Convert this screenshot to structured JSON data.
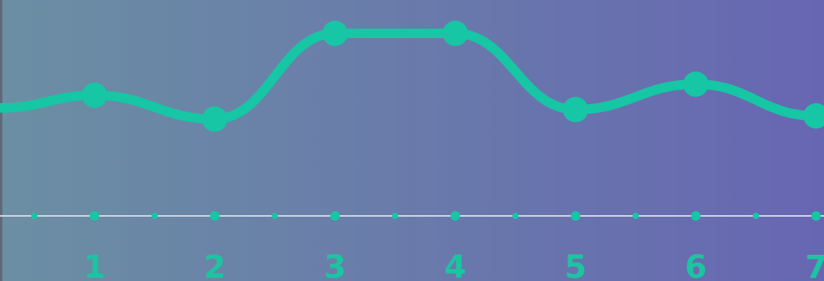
{
  "chart_data": {
    "type": "line",
    "x": [
      1,
      2,
      3,
      4,
      5,
      6,
      7
    ],
    "x_tick_labels": [
      "1",
      "2",
      "3",
      "4",
      "5",
      "6",
      "7"
    ],
    "series": [
      {
        "values": [
          55,
          40,
          94,
          94,
          46,
          62,
          42
        ]
      }
    ],
    "ylim": [
      0,
      100
    ],
    "smooth": true,
    "colors": {
      "line": "#16c6a4",
      "baseline": "#cfd6e4",
      "tick_label": "#1cc4a2",
      "bg_left": "#6b8fa3",
      "bg_right": "#6766b2"
    }
  }
}
